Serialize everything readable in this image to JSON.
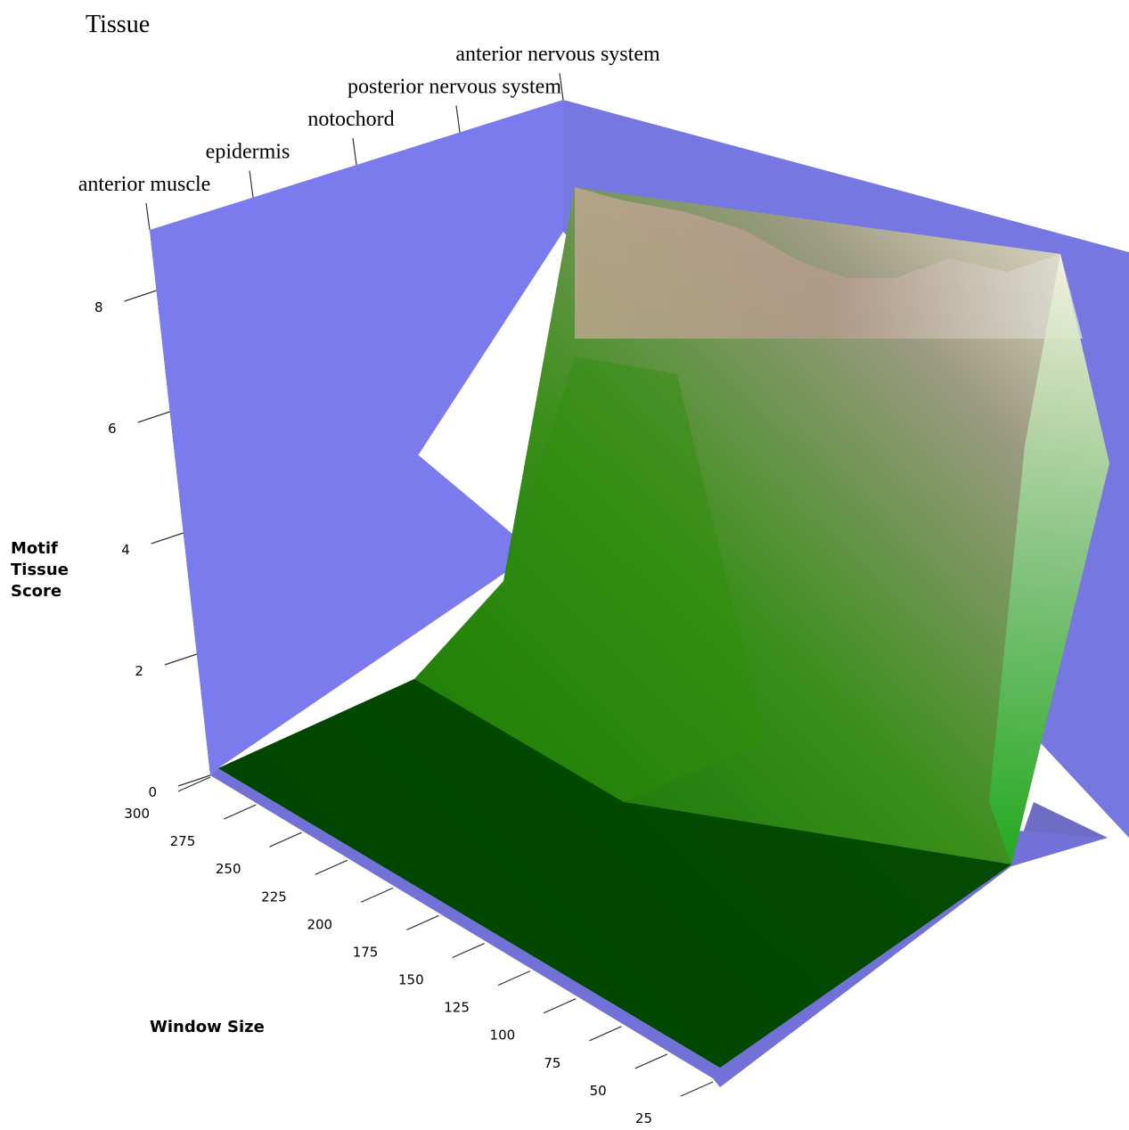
{
  "chart_data": {
    "type": "surface3d",
    "axes": {
      "x": {
        "title": "Tissue",
        "categories": [
          "anterior muscle",
          "epidermis",
          "notochord",
          "posterior nervous system",
          "anterior nervous system"
        ]
      },
      "y": {
        "title": "Window Size",
        "ticks": [
          "300",
          "275",
          "250",
          "225",
          "200",
          "175",
          "150",
          "125",
          "100",
          "75",
          "50",
          "25"
        ]
      },
      "z": {
        "title_lines": [
          "Motif",
          "Tissue",
          "Score"
        ],
        "ticks": [
          "0",
          "2",
          "4",
          "6",
          "8"
        ],
        "zlim": [
          0,
          9
        ]
      }
    },
    "surface": {
      "window_sizes": [
        300,
        275,
        250,
        225,
        200,
        175,
        150,
        125,
        100,
        75,
        50,
        25
      ],
      "series": [
        {
          "tissue": "anterior muscle",
          "values": [
            0,
            0,
            0,
            0,
            0,
            0,
            0,
            0,
            0,
            0,
            0,
            0
          ]
        },
        {
          "tissue": "epidermis",
          "values": [
            0,
            0,
            0,
            0,
            0,
            0,
            0,
            0,
            0,
            0.2,
            0.8,
            2.0
          ]
        },
        {
          "tissue": "notochord",
          "values": [
            0,
            0,
            0,
            0,
            0,
            0,
            0,
            0,
            0.1,
            0.5,
            1.5,
            3.5
          ]
        },
        {
          "tissue": "posterior nervous system",
          "values": [
            0,
            0,
            0,
            0,
            0,
            0,
            0,
            0,
            0.2,
            1.0,
            3.0,
            6.0
          ]
        },
        {
          "tissue": "anterior nervous system",
          "values": [
            0,
            0,
            0,
            0,
            0,
            0,
            0,
            0.1,
            0.5,
            2.0,
            5.0,
            8.5
          ]
        }
      ]
    },
    "colors": {
      "box": "#7b7bee",
      "floor": "#6e6ec8",
      "surface_low": "#004a00",
      "surface_mid": "#2e8f10",
      "surface_high": "#f2e6cc"
    }
  }
}
